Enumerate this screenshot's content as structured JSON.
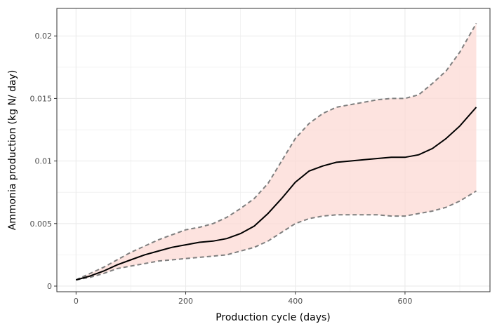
{
  "chart_data": {
    "type": "line",
    "title": "",
    "xlabel": "Production cycle (days)",
    "ylabel": "Ammonia production (kg N/ day)",
    "xlim": [
      -35,
      755
    ],
    "ylim": [
      -0.00045,
      0.0222
    ],
    "x_ticks": [
      0,
      200,
      400,
      600
    ],
    "x_tick_labels": [
      "0",
      "200",
      "400",
      "600"
    ],
    "y_ticks": [
      0,
      0.005,
      0.01,
      0.015,
      0.02
    ],
    "y_tick_labels": [
      "0",
      "0.005",
      "0.01",
      "0.015",
      "0.02"
    ],
    "grid": true,
    "legend": "none",
    "series": [
      {
        "role": "mean",
        "style": "solid",
        "color": "#000000",
        "x": [
          0,
          25,
          50,
          75,
          100,
          125,
          150,
          175,
          200,
          225,
          250,
          275,
          300,
          325,
          350,
          375,
          400,
          425,
          450,
          475,
          500,
          525,
          550,
          575,
          600,
          625,
          650,
          675,
          700,
          730
        ],
        "values": [
          0.0005,
          0.0008,
          0.0012,
          0.0017,
          0.0021,
          0.0025,
          0.0028,
          0.0031,
          0.0033,
          0.0035,
          0.0036,
          0.0038,
          0.0042,
          0.0048,
          0.0058,
          0.007,
          0.0083,
          0.0092,
          0.0096,
          0.0099,
          0.01,
          0.0101,
          0.0102,
          0.0103,
          0.0103,
          0.0105,
          0.011,
          0.0118,
          0.0128,
          0.0143
        ]
      },
      {
        "role": "upper",
        "style": "dashed",
        "color": "#7f7f7f",
        "x": [
          0,
          25,
          50,
          75,
          100,
          125,
          150,
          175,
          200,
          225,
          250,
          275,
          300,
          325,
          350,
          375,
          400,
          425,
          450,
          475,
          500,
          525,
          550,
          575,
          600,
          625,
          650,
          675,
          700,
          730
        ],
        "values": [
          0.0005,
          0.001,
          0.0015,
          0.0021,
          0.0027,
          0.0032,
          0.0037,
          0.0041,
          0.0045,
          0.0047,
          0.005,
          0.0055,
          0.0062,
          0.007,
          0.0082,
          0.01,
          0.0118,
          0.013,
          0.0138,
          0.0143,
          0.0145,
          0.0147,
          0.0149,
          0.015,
          0.015,
          0.0153,
          0.0162,
          0.0172,
          0.0187,
          0.021
        ]
      },
      {
        "role": "lower",
        "style": "dashed",
        "color": "#7f7f7f",
        "x": [
          0,
          25,
          50,
          75,
          100,
          125,
          150,
          175,
          200,
          225,
          250,
          275,
          300,
          325,
          350,
          375,
          400,
          425,
          450,
          475,
          500,
          525,
          550,
          575,
          600,
          625,
          650,
          675,
          700,
          730
        ],
        "values": [
          0.0005,
          0.0007,
          0.001,
          0.0014,
          0.0016,
          0.0018,
          0.002,
          0.0021,
          0.0022,
          0.0023,
          0.0024,
          0.0025,
          0.0028,
          0.0031,
          0.0036,
          0.0043,
          0.005,
          0.0054,
          0.0056,
          0.0057,
          0.0057,
          0.0057,
          0.0057,
          0.0056,
          0.0056,
          0.0058,
          0.006,
          0.0063,
          0.0068,
          0.0076
        ]
      }
    ],
    "colors": {
      "ribbon": "#fcd9d4",
      "grid": "#ebebeb",
      "panel_border": "#333333",
      "tick_text": "#4d4d4d"
    }
  }
}
